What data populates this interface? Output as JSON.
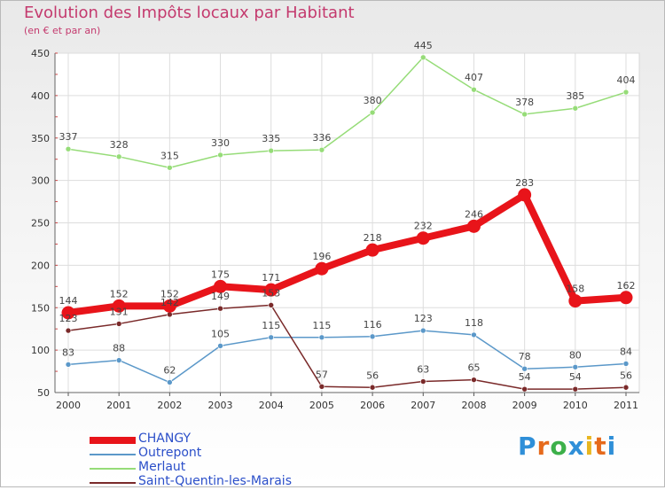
{
  "header": {
    "title": "Evolution des Impôts locaux par Habitant",
    "subtitle": "(en € et par an)"
  },
  "logo": {
    "letters": [
      "P",
      "r",
      "o",
      "x",
      "i",
      "t",
      "i"
    ],
    "colors": [
      "#2f8fd8",
      "#e66a1c",
      "#3cb04a",
      "#2f8fd8",
      "#e8b620",
      "#e66a1c",
      "#2f8fd8"
    ]
  },
  "chart_data": {
    "type": "line",
    "title": "Evolution des Impôts locaux par Habitant",
    "subtitle": "(en € et par an)",
    "xlabel": "",
    "ylabel": "",
    "x": [
      "2000",
      "2001",
      "2002",
      "2003",
      "2004",
      "2005",
      "2006",
      "2007",
      "2008",
      "2009",
      "2010",
      "2011"
    ],
    "ylim": [
      50,
      450
    ],
    "yticks": [
      50,
      100,
      150,
      200,
      250,
      300,
      350,
      400,
      450
    ],
    "grid": true,
    "legend": "bottom-left",
    "series": [
      {
        "name": "CHANGY",
        "color": "#e8141a",
        "width": 8,
        "values": [
          144,
          152,
          152,
          175,
          171,
          196,
          218,
          232,
          246,
          283,
          158,
          162
        ]
      },
      {
        "name": "Outrepont",
        "color": "#5b98c9",
        "width": 1.5,
        "values": [
          83,
          88,
          62,
          105,
          115,
          115,
          116,
          123,
          118,
          78,
          80,
          84
        ]
      },
      {
        "name": "Merlaut",
        "color": "#96dc78",
        "width": 1.5,
        "values": [
          337,
          328,
          315,
          330,
          335,
          336,
          380,
          445,
          407,
          378,
          385,
          404
        ]
      },
      {
        "name": "Saint-Quentin-les-Marais",
        "color": "#7a2a2a",
        "width": 1.5,
        "values": [
          123,
          131,
          142,
          149,
          153,
          57,
          56,
          63,
          65,
          54,
          54,
          56
        ]
      }
    ]
  }
}
